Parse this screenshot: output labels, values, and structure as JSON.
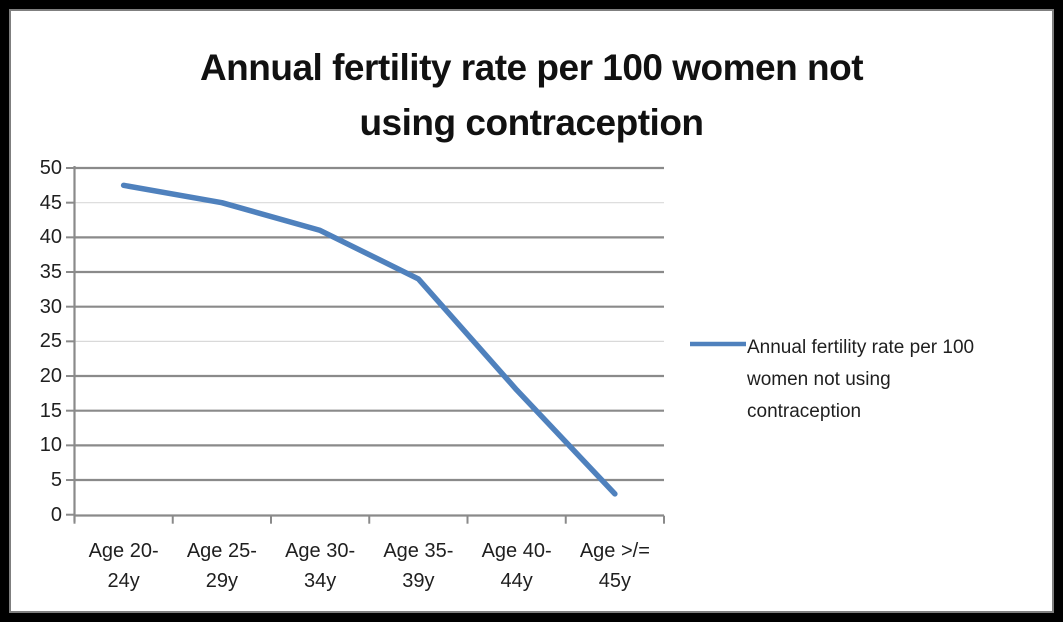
{
  "window": {
    "frame_color": "#000000",
    "inner_border_color": "#7f7f7f",
    "background": "#ffffff"
  },
  "header": {
    "title_lines": [
      "Annual fertility rate per 100 women not",
      "using contraception"
    ]
  },
  "legend": {
    "lines": [
      "Annual fertility rate per 100",
      "women not using",
      "contraception"
    ],
    "marker_color": "#4F81BD"
  },
  "chart_data": {
    "type": "line",
    "title": "Annual fertility rate per 100 women not using contraception",
    "categories": [
      "Age 20-24y",
      "Age 25-29y",
      "Age 30-34y",
      "Age 35-39y",
      "Age 40-44y",
      "Age >/= 45y"
    ],
    "xtick_lines": [
      [
        "Age 20-",
        "24y"
      ],
      [
        "Age 25-",
        "29y"
      ],
      [
        "Age 30-",
        "34y"
      ],
      [
        "Age 35-",
        "39y"
      ],
      [
        "Age 40-",
        "44y"
      ],
      [
        "Age >/=",
        "45y"
      ]
    ],
    "series": [
      {
        "name": "Annual fertility rate per 100 women not using contraception",
        "values": [
          47.5,
          45,
          41,
          34,
          18,
          3
        ]
      }
    ],
    "xlabel": "",
    "ylabel": "",
    "ylim": [
      0,
      50
    ],
    "yticks": [
      0,
      5,
      10,
      15,
      20,
      25,
      30,
      35,
      40,
      45,
      50
    ],
    "grid": "horizontal",
    "light_gridlines": [
      25,
      45
    ],
    "legend_position": "right",
    "colors": {
      "line": "#4F81BD",
      "gridline": "#8a8a8a",
      "gridline_light": "#d9d9d9",
      "axis": "#8a8a8a",
      "text": "#1f1f1f"
    }
  }
}
